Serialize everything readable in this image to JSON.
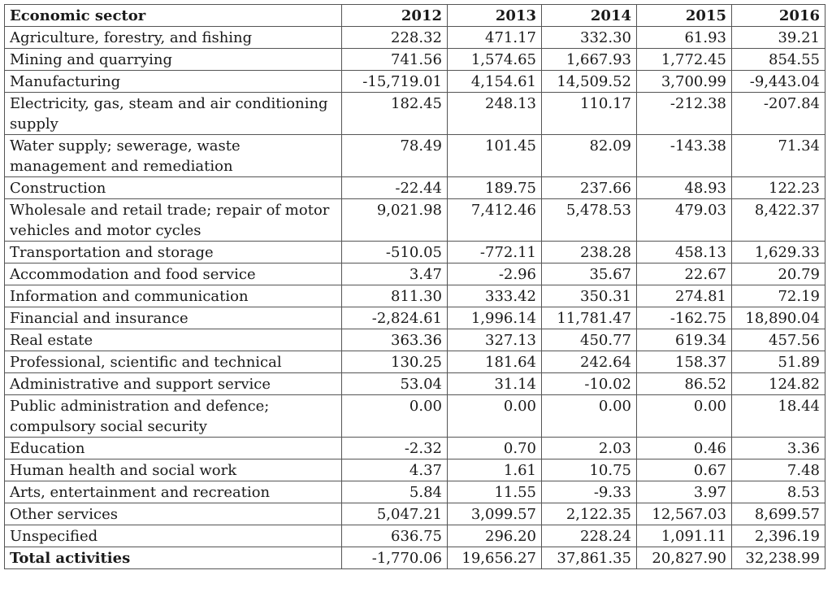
{
  "table": {
    "headers": [
      "Economic sector",
      "2012",
      "2013",
      "2014",
      "2015",
      "2016"
    ],
    "rows": [
      {
        "sector": "Agriculture, forestry, and fishing",
        "values": [
          "228.32",
          "471.17",
          "332.30",
          "61.93",
          "39.21"
        ]
      },
      {
        "sector": "Mining and quarrying",
        "values": [
          "741.56",
          "1,574.65",
          "1,667.93",
          "1,772.45",
          "854.55"
        ]
      },
      {
        "sector": "Manufacturing",
        "values": [
          "-15,719.01",
          "4,154.61",
          "14,509.52",
          "3,700.99",
          "-9,443.04"
        ]
      },
      {
        "sector": "Electricity, gas, steam and air conditioning supply",
        "values": [
          "182.45",
          "248.13",
          "110.17",
          "-212.38",
          "-207.84"
        ]
      },
      {
        "sector": "Water supply; sewerage, waste management and remediation",
        "values": [
          "78.49",
          "101.45",
          "82.09",
          "-143.38",
          "71.34"
        ]
      },
      {
        "sector": "Construction",
        "values": [
          "-22.44",
          "189.75",
          "237.66",
          "48.93",
          "122.23"
        ]
      },
      {
        "sector": "Wholesale and retail trade; repair of motor vehicles and motor cycles",
        "values": [
          "9,021.98",
          "7,412.46",
          "5,478.53",
          "479.03",
          "8,422.37"
        ]
      },
      {
        "sector": "Transportation and storage",
        "values": [
          "-510.05",
          "-772.11",
          "238.28",
          "458.13",
          "1,629.33"
        ]
      },
      {
        "sector": "Accommodation and food service",
        "values": [
          "3.47",
          "-2.96",
          "35.67",
          "22.67",
          "20.79"
        ]
      },
      {
        "sector": "Information and communication",
        "values": [
          "811.30",
          "333.42",
          "350.31",
          "274.81",
          "72.19"
        ]
      },
      {
        "sector": "Financial and insurance",
        "values": [
          "-2,824.61",
          "1,996.14",
          "11,781.47",
          "-162.75",
          "18,890.04"
        ]
      },
      {
        "sector": "Real estate",
        "values": [
          "363.36",
          "327.13",
          "450.77",
          "619.34",
          "457.56"
        ]
      },
      {
        "sector": "Professional, scientific and technical",
        "values": [
          "130.25",
          "181.64",
          "242.64",
          "158.37",
          "51.89"
        ]
      },
      {
        "sector": "Administrative and support service",
        "values": [
          "53.04",
          "31.14",
          "-10.02",
          "86.52",
          "124.82"
        ]
      },
      {
        "sector": "Public administration and defence; compulsory social security",
        "values": [
          "0.00",
          "0.00",
          "0.00",
          "0.00",
          "18.44"
        ]
      },
      {
        "sector": "Education",
        "values": [
          "-2.32",
          "0.70",
          "2.03",
          "0.46",
          "3.36"
        ]
      },
      {
        "sector": "Human health and social work",
        "values": [
          "4.37",
          "1.61",
          "10.75",
          "0.67",
          "7.48"
        ]
      },
      {
        "sector": "Arts, entertainment and recreation",
        "values": [
          "5.84",
          "11.55",
          "-9.33",
          "3.97",
          "8.53"
        ]
      },
      {
        "sector": "Other services",
        "values": [
          "5,047.21",
          "3,099.57",
          "2,122.35",
          "12,567.03",
          "8,699.57"
        ]
      },
      {
        "sector": "Unspecified",
        "values": [
          "636.75",
          "296.20",
          "228.24",
          "1,091.11",
          "2,396.19"
        ]
      }
    ],
    "total": {
      "sector": "Total activities",
      "values": [
        "-1,770.06",
        "19,656.27",
        "37,861.35",
        "20,827.90",
        "32,238.99"
      ]
    }
  }
}
